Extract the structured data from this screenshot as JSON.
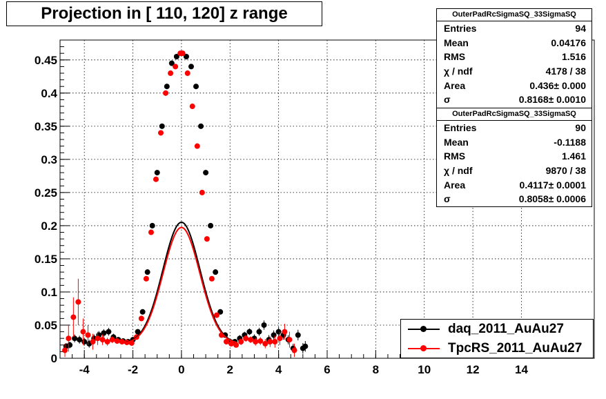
{
  "title": "Projection in [ 110, 120] z range",
  "colors": {
    "series1": "#000000",
    "series2": "#ff0000",
    "grid": "#000000"
  },
  "stats": [
    {
      "header": "OuterPadRcSigmaSQ_33SigmaSQ",
      "rows": [
        {
          "label": "Entries",
          "value": "94"
        },
        {
          "label": "Mean",
          "value": "0.04176"
        },
        {
          "label": "RMS",
          "value": "1.516"
        },
        {
          "label": "χ  / ndf",
          "value": "4178 / 38"
        },
        {
          "label": "Area",
          "value": "0.436± 0.000"
        },
        {
          "label": "σ",
          "value": "0.8168± 0.0010"
        }
      ]
    },
    {
      "header": "OuterPadRcSigmaSQ_33SigmaSQ",
      "rows": [
        {
          "label": "Entries",
          "value": "90"
        },
        {
          "label": "Mean",
          "value": "-0.1188"
        },
        {
          "label": "RMS",
          "value": "1.461"
        },
        {
          "label": "χ  / ndf",
          "value": "9870 / 38"
        },
        {
          "label": "Area",
          "value": "0.4117± 0.0001"
        },
        {
          "label": "σ",
          "value": "0.8058± 0.0006"
        }
      ]
    }
  ],
  "legend": [
    {
      "label": "daq_2011_AuAu27",
      "color": "#000000"
    },
    {
      "label": "TpcRS_2011_AuAu27",
      "color": "#ff0000"
    }
  ],
  "chart_data": {
    "type": "scatter",
    "title": "Projection in [ 110, 120] z range",
    "xlim": [
      -5,
      17
    ],
    "ylim": [
      0,
      0.48
    ],
    "xticks": [
      -4,
      -2,
      0,
      2,
      4,
      6,
      8,
      10,
      12,
      14
    ],
    "xtick_labels": [
      "-4",
      "-2",
      "0",
      "2",
      "4",
      "6",
      "8",
      "10",
      "12",
      "14"
    ],
    "yticks": [
      0,
      0.05,
      0.1,
      0.15,
      0.2,
      0.25,
      0.3,
      0.35,
      0.4,
      0.45
    ],
    "ytick_labels": [
      "0",
      "0.05",
      "0.1",
      "0.15",
      "0.2",
      "0.25",
      "0.3",
      "0.35",
      "0.4",
      "0.45"
    ],
    "grid": true,
    "legend_position": "bottom-right",
    "series": [
      {
        "name": "daq_2011_AuAu27",
        "color": "#000000",
        "x": [
          -4.75,
          -4.6,
          -4.4,
          -4.2,
          -4.0,
          -3.8,
          -3.6,
          -3.4,
          -3.2,
          -3.0,
          -2.8,
          -2.6,
          -2.4,
          -2.2,
          -2.0,
          -1.8,
          -1.6,
          -1.4,
          -1.2,
          -1.0,
          -0.8,
          -0.6,
          -0.4,
          -0.2,
          0.0,
          0.2,
          0.4,
          0.6,
          0.8,
          1.0,
          1.2,
          1.4,
          1.6,
          1.8,
          2.0,
          2.2,
          2.4,
          2.6,
          2.8,
          3.0,
          3.2,
          3.4,
          3.6,
          3.8,
          4.0,
          4.2,
          4.4,
          4.6,
          4.8,
          5.0,
          5.1
        ],
        "y": [
          0.018,
          0.02,
          0.03,
          0.028,
          0.025,
          0.022,
          0.03,
          0.035,
          0.038,
          0.04,
          0.032,
          0.028,
          0.026,
          0.025,
          0.028,
          0.04,
          0.07,
          0.13,
          0.2,
          0.28,
          0.35,
          0.41,
          0.445,
          0.455,
          0.46,
          0.455,
          0.44,
          0.41,
          0.35,
          0.28,
          0.2,
          0.13,
          0.07,
          0.035,
          0.025,
          0.025,
          0.03,
          0.035,
          0.04,
          0.03,
          0.04,
          0.05,
          0.028,
          0.035,
          0.04,
          0.035,
          0.028,
          0.015,
          0.035,
          0.015,
          0.018
        ],
        "yerr": [
          0.005,
          0.005,
          0.006,
          0.006,
          0.006,
          0.006,
          0.006,
          0.006,
          0.006,
          0.006,
          0.005,
          0.004,
          0.004,
          0.004,
          0.004,
          0.004,
          0.004,
          0.004,
          0.004,
          0.004,
          0.004,
          0.004,
          0.004,
          0.004,
          0.004,
          0.004,
          0.004,
          0.004,
          0.004,
          0.004,
          0.004,
          0.004,
          0.004,
          0.004,
          0.004,
          0.004,
          0.005,
          0.005,
          0.005,
          0.006,
          0.006,
          0.007,
          0.007,
          0.007,
          0.007,
          0.007,
          0.007,
          0.007,
          0.008,
          0.008,
          0.008
        ]
      },
      {
        "name": "TpcRS_2011_AuAu27",
        "color": "#ff0000",
        "x": [
          -4.8,
          -4.65,
          -4.45,
          -4.25,
          -4.05,
          -3.85,
          -3.65,
          -3.45,
          -3.25,
          -3.05,
          -2.85,
          -2.65,
          -2.45,
          -2.25,
          -2.05,
          -1.85,
          -1.65,
          -1.45,
          -1.25,
          -1.05,
          -0.85,
          -0.65,
          -0.45,
          -0.25,
          -0.05,
          0.05,
          0.25,
          0.45,
          0.65,
          0.85,
          1.05,
          1.25,
          1.45,
          1.65,
          1.85,
          2.05,
          2.25,
          2.45,
          2.65,
          2.85,
          3.05,
          3.25,
          3.45,
          3.65,
          3.85,
          4.05,
          4.25,
          4.45,
          4.65
        ],
        "y": [
          0.012,
          0.03,
          0.062,
          0.085,
          0.04,
          0.035,
          0.025,
          0.03,
          0.028,
          0.025,
          0.028,
          0.026,
          0.025,
          0.024,
          0.023,
          0.032,
          0.06,
          0.12,
          0.19,
          0.27,
          0.34,
          0.4,
          0.43,
          0.44,
          0.46,
          0.46,
          0.43,
          0.38,
          0.32,
          0.25,
          0.18,
          0.12,
          0.065,
          0.035,
          0.025,
          0.022,
          0.02,
          0.025,
          0.03,
          0.028,
          0.025,
          0.026,
          0.022,
          0.025,
          0.025,
          0.03,
          0.04,
          0.028,
          0.012
        ],
        "yerr": [
          0.01,
          0.02,
          0.03,
          0.035,
          0.02,
          0.015,
          0.012,
          0.01,
          0.008,
          0.006,
          0.005,
          0.004,
          0.004,
          0.004,
          0.004,
          0.004,
          0.004,
          0.004,
          0.004,
          0.004,
          0.004,
          0.004,
          0.004,
          0.004,
          0.004,
          0.004,
          0.004,
          0.004,
          0.004,
          0.004,
          0.004,
          0.004,
          0.004,
          0.004,
          0.004,
          0.004,
          0.004,
          0.005,
          0.005,
          0.005,
          0.006,
          0.006,
          0.007,
          0.008,
          0.009,
          0.01,
          0.012,
          0.012,
          0.01
        ]
      }
    ],
    "fits": [
      {
        "series": "daq_2011_AuAu27",
        "color": "#000000",
        "area": 0.436,
        "sigma": 0.8168,
        "mean": 0.0
      },
      {
        "series": "TpcRS_2011_AuAu27",
        "color": "#ff0000",
        "area": 0.4117,
        "sigma": 0.8058,
        "mean": 0.0
      }
    ]
  }
}
